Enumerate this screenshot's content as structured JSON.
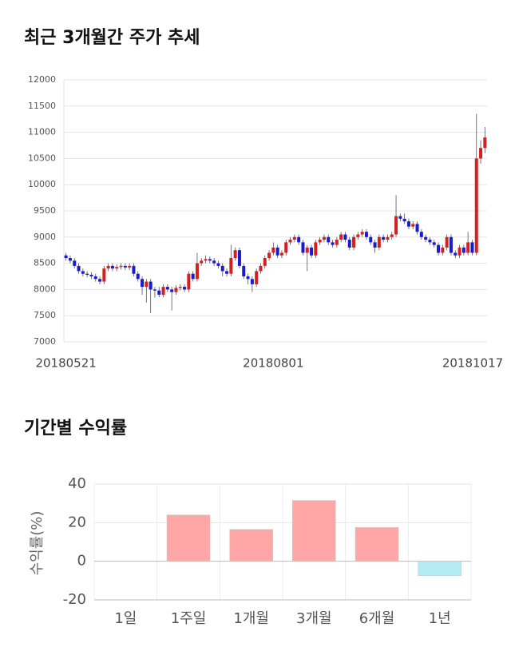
{
  "chart_data": [
    {
      "type": "candlestick",
      "title": "최근 3개월간 주가 추세",
      "categories": [
        "20180521",
        null,
        null,
        null,
        null,
        null,
        null,
        null,
        null,
        null,
        null,
        null,
        null,
        null,
        null,
        null,
        null,
        null,
        null,
        null,
        null,
        null,
        null,
        null,
        null,
        null,
        null,
        null,
        null,
        null,
        null,
        null,
        null,
        null,
        null,
        null,
        null,
        null,
        null,
        null,
        null,
        null,
        null,
        null,
        null,
        null,
        null,
        null,
        null,
        "20180801",
        null,
        null,
        null,
        null,
        null,
        null,
        null,
        null,
        null,
        null,
        null,
        null,
        null,
        null,
        null,
        null,
        null,
        null,
        null,
        null,
        null,
        null,
        null,
        null,
        null,
        null,
        null,
        null,
        null,
        null,
        null,
        null,
        null,
        null,
        null,
        null,
        null,
        null,
        null,
        null,
        null,
        null,
        null,
        null,
        null,
        null,
        null,
        null,
        null,
        "20181017"
      ],
      "open": [
        8650,
        8600,
        8550,
        8450,
        8350,
        8300,
        8280,
        8250,
        8200,
        8150,
        8400,
        8450,
        8400,
        8430,
        8450,
        8420,
        8450,
        8300,
        8200,
        8050,
        8150,
        8000,
        7980,
        7900,
        8050,
        8000,
        7950,
        8030,
        8050,
        8000,
        8300,
        8200,
        8500,
        8550,
        8580,
        8550,
        8500,
        8450,
        8350,
        8300,
        8600,
        8750,
        8450,
        8250,
        8200,
        8100,
        8350,
        8450,
        8600,
        8700,
        8800,
        8650,
        8700,
        8900,
        8950,
        9000,
        8900,
        8700,
        8800,
        8650,
        8900,
        8950,
        9000,
        8900,
        8850,
        8950,
        9050,
        8950,
        8800,
        9000,
        9050,
        9100,
        9000,
        8900,
        8800,
        9000,
        8950,
        9000,
        9050,
        9400,
        9350,
        9300,
        9200,
        9250,
        9100,
        9000,
        8950,
        8900,
        8850,
        8700,
        8800,
        9000,
        8700,
        8650,
        8800,
        8700,
        8900,
        8700,
        10500,
        10700
      ],
      "high": [
        8700,
        8650,
        8600,
        8500,
        8400,
        8350,
        8330,
        8300,
        8250,
        8450,
        8500,
        8500,
        8480,
        8500,
        8500,
        8500,
        8500,
        8350,
        8250,
        8200,
        8200,
        8050,
        8050,
        8100,
        8100,
        8050,
        8080,
        8100,
        8100,
        8350,
        8350,
        8700,
        8600,
        8650,
        8630,
        8600,
        8550,
        8500,
        8400,
        8850,
        8800,
        8800,
        8500,
        8300,
        8250,
        8400,
        8500,
        8650,
        8750,
        8900,
        8850,
        8750,
        8950,
        9000,
        9050,
        9050,
        8950,
        8850,
        8850,
        8950,
        9000,
        9050,
        9050,
        8950,
        9000,
        9100,
        9100,
        9000,
        9050,
        9100,
        9150,
        9150,
        9050,
        8950,
        9050,
        9050,
        9050,
        9100,
        9800,
        9450,
        9450,
        9350,
        9300,
        9300,
        9150,
        9050,
        9000,
        8950,
        8900,
        8850,
        9050,
        9050,
        8750,
        8850,
        8850,
        9100,
        8950,
        11350,
        10850,
        11100
      ],
      "low": [
        8550,
        8500,
        8400,
        8300,
        8250,
        8230,
        8200,
        8150,
        8100,
        8100,
        8350,
        8350,
        8350,
        8380,
        8370,
        8370,
        8250,
        8150,
        7900,
        7750,
        7550,
        7850,
        7850,
        7850,
        7950,
        7600,
        7900,
        7980,
        7950,
        7950,
        8150,
        8150,
        8450,
        8500,
        8500,
        8450,
        8400,
        8250,
        8250,
        8250,
        8550,
        8400,
        8200,
        8100,
        7950,
        8050,
        8300,
        8400,
        8550,
        8650,
        8600,
        8600,
        8650,
        8850,
        8900,
        8850,
        8650,
        8350,
        8600,
        8600,
        8850,
        8900,
        8850,
        8800,
        8800,
        8900,
        8900,
        8750,
        8750,
        8950,
        9000,
        8950,
        8850,
        8700,
        8750,
        8900,
        8900,
        8950,
        9000,
        9300,
        9250,
        9150,
        9150,
        9050,
        8950,
        8900,
        8850,
        8800,
        8650,
        8650,
        8750,
        8650,
        8600,
        8600,
        8650,
        8650,
        8650,
        8650,
        10400,
        10600
      ],
      "close": [
        8600,
        8550,
        8450,
        8350,
        8300,
        8280,
        8250,
        8200,
        8150,
        8400,
        8450,
        8400,
        8430,
        8450,
        8420,
        8450,
        8300,
        8200,
        8050,
        8150,
        8000,
        7980,
        7900,
        8050,
        8000,
        7950,
        8030,
        8050,
        8000,
        8300,
        8200,
        8500,
        8550,
        8580,
        8550,
        8500,
        8450,
        8350,
        8300,
        8600,
        8750,
        8450,
        8250,
        8200,
        8100,
        8350,
        8450,
        8600,
        8700,
        8800,
        8650,
        8700,
        8900,
        8950,
        9000,
        8900,
        8700,
        8800,
        8650,
        8900,
        8950,
        9000,
        8900,
        8850,
        8950,
        9050,
        8950,
        8800,
        9000,
        9050,
        9100,
        9000,
        8900,
        8800,
        9000,
        8950,
        9000,
        9050,
        9400,
        9350,
        9300,
        9200,
        9250,
        9100,
        9000,
        8950,
        8900,
        8850,
        8700,
        8800,
        9000,
        8700,
        8650,
        8800,
        8700,
        8900,
        8700,
        10500,
        10700,
        10900
      ],
      "up_color": "#d42020",
      "down_color": "#1a1ad0",
      "ylim": [
        7000,
        12000
      ],
      "yticks": [
        7000,
        7500,
        8000,
        8500,
        9000,
        9500,
        10000,
        10500,
        11000,
        11500,
        12000
      ],
      "grid": true
    },
    {
      "type": "bar",
      "title": "기간별 수익률",
      "y_label": "수익률(%)",
      "categories": [
        "1일",
        "1주일",
        "1개월",
        "3개월",
        "6개월",
        "1년"
      ],
      "values": [
        0,
        24,
        16.5,
        31.5,
        17.5,
        -7.5
      ],
      "colors": [
        "#ffa6a6",
        "#ffa6a6",
        "#ffa6a6",
        "#ffa6a6",
        "#ffa6a6",
        "#b4eaf2"
      ],
      "ylim": [
        -20,
        40
      ],
      "yticks": [
        -20,
        0,
        20,
        40
      ],
      "grid": true
    }
  ]
}
